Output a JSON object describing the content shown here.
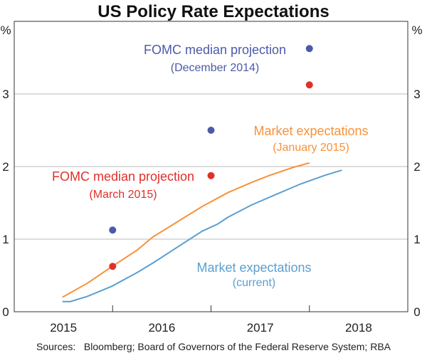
{
  "chart_data": {
    "type": "line",
    "title": "US Policy Rate Expectations",
    "ylabel_left": "%",
    "ylabel_right": "%",
    "ylim": [
      0,
      4
    ],
    "yticks": [
      0,
      1,
      2,
      3
    ],
    "xlim": [
      2015,
      2019
    ],
    "xtick_labels": [
      "2015",
      "2016",
      "2017",
      "2018"
    ],
    "grid": true,
    "series": [
      {
        "name": "Market expectations",
        "name_sub": "(January 2015)",
        "kind": "line",
        "color": "#f7923a",
        "x": [
          2015.49,
          2015.74,
          2015.99,
          2016.25,
          2016.41,
          2016.66,
          2016.91,
          2017.17,
          2017.41,
          2017.6,
          2017.84,
          2018.0
        ],
        "y": [
          0.2,
          0.39,
          0.62,
          0.85,
          1.03,
          1.24,
          1.45,
          1.64,
          1.78,
          1.88,
          1.99,
          2.05
        ]
      },
      {
        "name": "Market expectations",
        "name_sub": "(current)",
        "kind": "line",
        "color": "#5b9fd0",
        "x": [
          2015.49,
          2015.57,
          2015.74,
          2015.99,
          2016.25,
          2016.42,
          2016.67,
          2016.91,
          2017.07,
          2017.17,
          2017.41,
          2017.65,
          2017.91,
          2018.16,
          2018.33
        ],
        "y": [
          0.14,
          0.14,
          0.21,
          0.35,
          0.54,
          0.68,
          0.9,
          1.11,
          1.21,
          1.3,
          1.47,
          1.61,
          1.76,
          1.88,
          1.95
        ]
      },
      {
        "name": "FOMC median projection",
        "name_sub": "(December 2014)",
        "kind": "scatter",
        "color": "#4b5aa9",
        "x": [
          2016.0,
          2017.0,
          2018.0
        ],
        "y": [
          1.125,
          2.5,
          3.625
        ]
      },
      {
        "name": "FOMC median projection",
        "name_sub": "(March 2015)",
        "kind": "scatter",
        "color": "#e0302a",
        "x": [
          2016.0,
          2017.0,
          2018.0
        ],
        "y": [
          0.625,
          1.875,
          3.125
        ]
      }
    ],
    "source": "Sources:   Bloomberg; Board of Governors of the Federal Reserve System; RBA"
  }
}
